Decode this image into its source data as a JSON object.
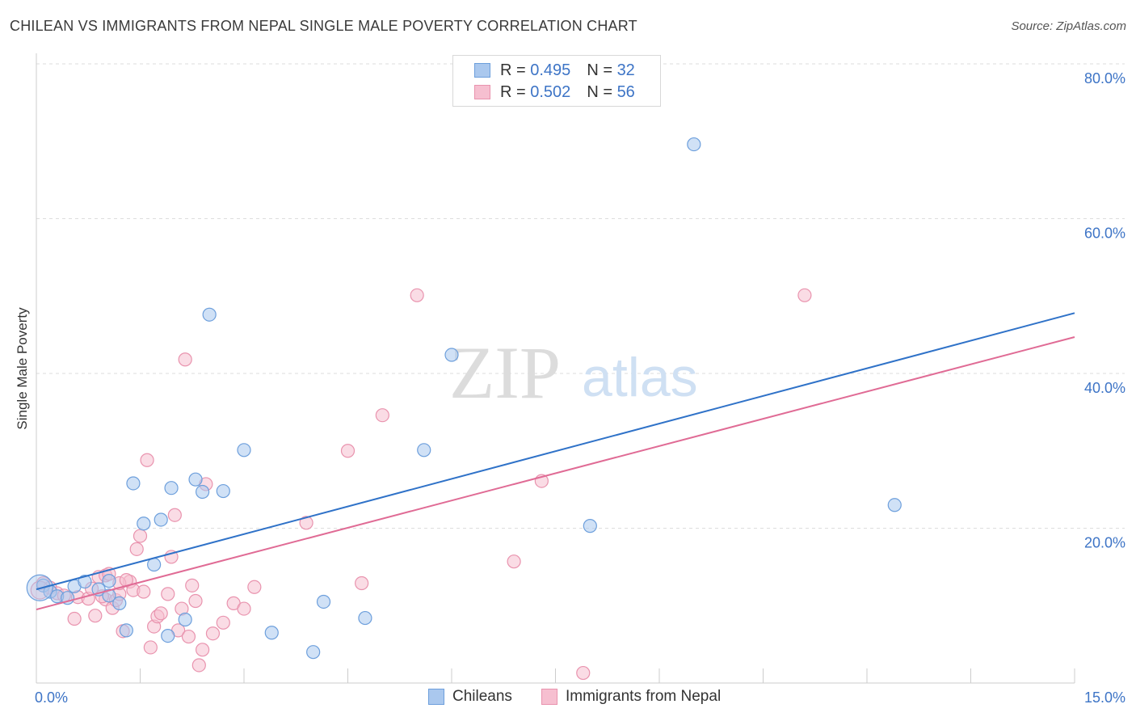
{
  "title": "CHILEAN VS IMMIGRANTS FROM NEPAL SINGLE MALE POVERTY CORRELATION CHART",
  "source": "Source: ZipAtlas.com",
  "watermark": {
    "zip": "ZIP",
    "atlas": "atlas"
  },
  "legend_top": {
    "rows": [
      {
        "r_label": "R =",
        "r_value": "0.495",
        "n_label": "N =",
        "n_value": "32"
      },
      {
        "r_label": "R =",
        "r_value": "0.502",
        "n_label": "N =",
        "n_value": "56"
      }
    ]
  },
  "legend_bottom": {
    "series1": "Chileans",
    "series2": "Immigrants from Nepal"
  },
  "colors": {
    "blue_fill": "#aac8ee",
    "blue_stroke": "#6d9fdc",
    "blue_line": "#2f72c8",
    "pink_fill": "#f6bfd0",
    "pink_stroke": "#e993ae",
    "pink_line": "#e06b95",
    "tick_text": "#3d74c6",
    "grid": "#dddddd"
  },
  "chart_data": {
    "type": "scatter",
    "title": "CHILEAN VS IMMIGRANTS FROM NEPAL SINGLE MALE POVERTY CORRELATION CHART",
    "xlabel": "",
    "ylabel": "Single Male Poverty",
    "xlim": [
      0,
      15
    ],
    "ylim": [
      0,
      80
    ],
    "x_tick_labels": [
      "0.0%",
      "15.0%"
    ],
    "y_ticks": [
      20,
      40,
      60,
      80
    ],
    "y_tick_labels": [
      "20.0%",
      "40.0%",
      "60.0%",
      "80.0%"
    ],
    "grid": true,
    "legend_position": "top-center",
    "series": [
      {
        "name": "Chileans",
        "r": 0.495,
        "n": 32,
        "trend": {
          "x": [
            0,
            15
          ],
          "y": [
            12.1,
            47.8
          ]
        },
        "points": [
          [
            0.1,
            12.6
          ],
          [
            0.2,
            11.8
          ],
          [
            0.3,
            11.2
          ],
          [
            0.45,
            11.0
          ],
          [
            0.55,
            12.5
          ],
          [
            0.7,
            13.1
          ],
          [
            0.9,
            12.1
          ],
          [
            1.05,
            11.3
          ],
          [
            1.05,
            13.2
          ],
          [
            1.2,
            10.3
          ],
          [
            1.3,
            6.8
          ],
          [
            1.4,
            25.8
          ],
          [
            1.55,
            20.6
          ],
          [
            1.7,
            15.3
          ],
          [
            1.8,
            21.1
          ],
          [
            1.9,
            6.1
          ],
          [
            1.95,
            25.2
          ],
          [
            2.15,
            8.2
          ],
          [
            2.3,
            26.3
          ],
          [
            2.4,
            24.7
          ],
          [
            2.5,
            47.6
          ],
          [
            2.7,
            24.8
          ],
          [
            3.0,
            30.1
          ],
          [
            3.4,
            6.5
          ],
          [
            4.0,
            4.0
          ],
          [
            4.15,
            10.5
          ],
          [
            4.75,
            8.4
          ],
          [
            5.6,
            30.1
          ],
          [
            6.0,
            42.4
          ],
          [
            8.0,
            20.3
          ],
          [
            9.5,
            69.6
          ],
          [
            12.4,
            23.0
          ]
        ]
      },
      {
        "name": "Immigrants from Nepal",
        "r": 0.502,
        "n": 56,
        "trend": {
          "x": [
            0,
            15
          ],
          "y": [
            9.5,
            44.7
          ]
        },
        "points": [
          [
            0.1,
            12.9
          ],
          [
            0.2,
            12.3
          ],
          [
            0.3,
            11.6
          ],
          [
            0.4,
            11.3
          ],
          [
            0.55,
            8.3
          ],
          [
            0.6,
            11.1
          ],
          [
            0.75,
            10.9
          ],
          [
            0.8,
            12.2
          ],
          [
            0.85,
            8.7
          ],
          [
            0.9,
            13.7
          ],
          [
            1.0,
            10.8
          ],
          [
            1.0,
            13.9
          ],
          [
            1.05,
            14.1
          ],
          [
            1.1,
            9.7
          ],
          [
            1.15,
            10.7
          ],
          [
            1.2,
            11.5
          ],
          [
            1.25,
            6.7
          ],
          [
            1.35,
            13.1
          ],
          [
            1.4,
            12.0
          ],
          [
            1.45,
            17.3
          ],
          [
            1.5,
            19.0
          ],
          [
            1.55,
            11.8
          ],
          [
            1.6,
            28.8
          ],
          [
            1.65,
            4.6
          ],
          [
            1.7,
            7.3
          ],
          [
            1.75,
            8.6
          ],
          [
            1.8,
            9.0
          ],
          [
            1.9,
            11.5
          ],
          [
            1.95,
            16.3
          ],
          [
            2.0,
            21.7
          ],
          [
            2.05,
            6.8
          ],
          [
            2.1,
            9.6
          ],
          [
            2.15,
            41.8
          ],
          [
            2.25,
            12.6
          ],
          [
            2.3,
            10.6
          ],
          [
            2.35,
            2.3
          ],
          [
            2.4,
            4.3
          ],
          [
            2.45,
            25.7
          ],
          [
            2.55,
            6.4
          ],
          [
            2.7,
            7.8
          ],
          [
            2.85,
            10.3
          ],
          [
            3.0,
            9.6
          ],
          [
            3.15,
            12.4
          ],
          [
            3.9,
            20.7
          ],
          [
            4.5,
            30.0
          ],
          [
            4.7,
            12.9
          ],
          [
            5.0,
            34.6
          ],
          [
            5.5,
            50.1
          ],
          [
            6.9,
            15.7
          ],
          [
            7.3,
            26.1
          ],
          [
            7.9,
            1.3
          ],
          [
            11.1,
            50.1
          ],
          [
            1.2,
            12.9
          ],
          [
            0.95,
            11.2
          ],
          [
            1.3,
            13.3
          ],
          [
            2.2,
            6.0
          ]
        ]
      }
    ]
  }
}
